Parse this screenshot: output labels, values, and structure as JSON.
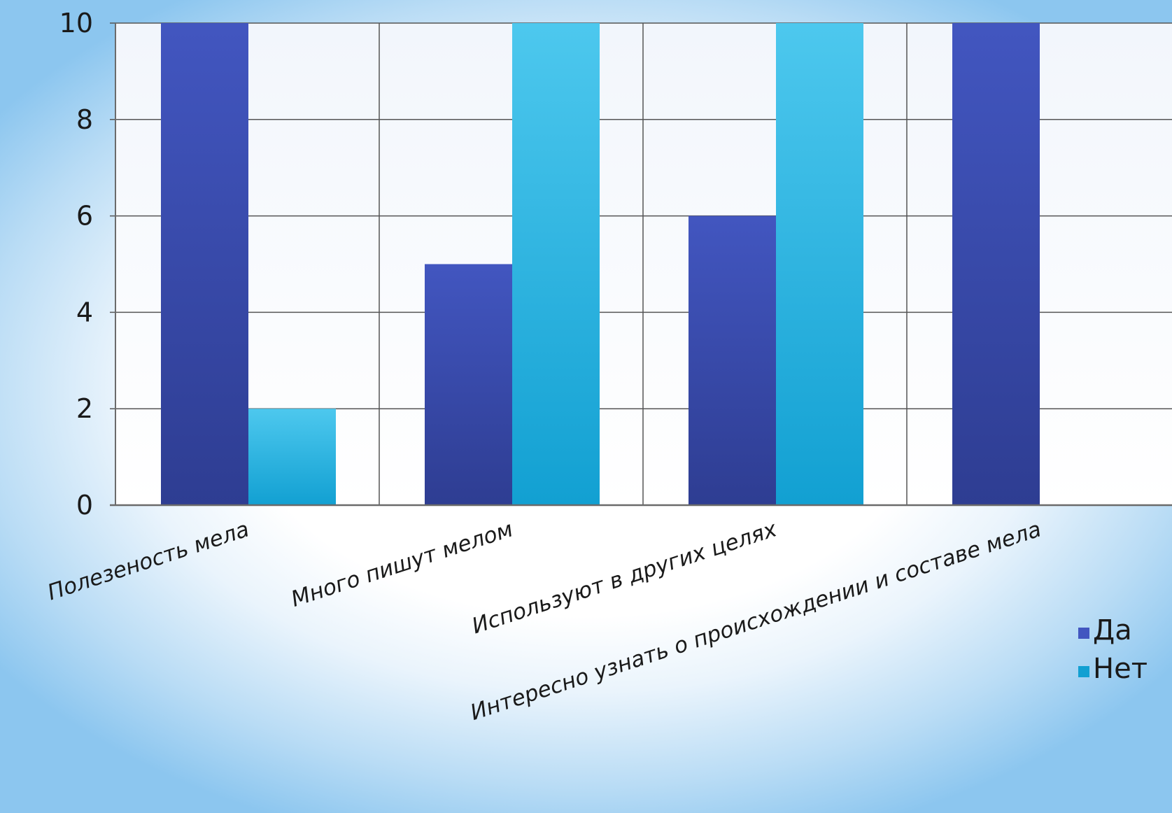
{
  "chart_data": {
    "type": "bar",
    "categories": [
      "Полезеность мела",
      "Много пишут мелом",
      "Используют в других целях",
      "Интересно узнать о происхождении и составе мела"
    ],
    "series": [
      {
        "name": "Да",
        "values": [
          10,
          5,
          6,
          10
        ]
      },
      {
        "name": "Нет",
        "values": [
          2,
          10,
          10,
          0
        ]
      }
    ],
    "yticks": [
      0,
      2,
      4,
      6,
      8,
      10
    ],
    "ylim": [
      0,
      10
    ],
    "grid": true,
    "legend_position": "right",
    "colors": {
      "Да": [
        "#4256c0",
        "#2e3d92"
      ],
      "Нет": [
        "#4dc8ee",
        "#12a0d2"
      ],
      "grid": "#555555",
      "plot_bg_top": "#f2f6fc",
      "plot_bg_bottom": "#ffffff"
    }
  }
}
